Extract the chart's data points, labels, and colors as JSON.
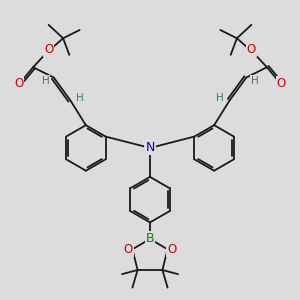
{
  "background_color": "#dcdcdc",
  "bond_color": "#1a1a1a",
  "atom_colors": {
    "O": "#cc0000",
    "N": "#0000cc",
    "B": "#008800",
    "H": "#3a7a7a",
    "C": "#1a1a1a"
  },
  "figsize": [
    3.0,
    3.0
  ],
  "dpi": 100
}
